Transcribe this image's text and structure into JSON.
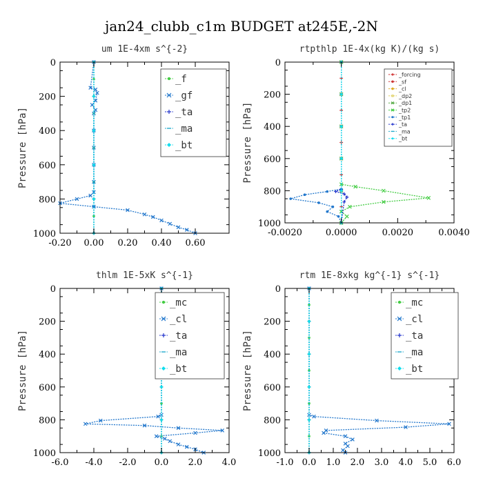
{
  "figure_title": "jan24_clubb_c1m  BUDGET at245E,-2N",
  "chart_data": [
    {
      "type": "line",
      "title": "um   1E-4xm s^{-2}",
      "ylabel": "Pressure [hPa]",
      "xlim": [
        -0.2,
        0.8
      ],
      "ylim": [
        1000,
        0
      ],
      "xticks": [
        -0.2,
        0.0,
        0.2,
        0.4,
        0.6
      ],
      "xtick_labels": [
        "-0.20",
        "0.00",
        "0.20",
        "0.40",
        "0.60"
      ],
      "yticks": [
        0,
        200,
        400,
        600,
        800,
        1000
      ],
      "legend_position": "top-right",
      "series": [
        {
          "name": "_f",
          "color": "#44cc44",
          "marker": "circle",
          "x": [
            0,
            0,
            0,
            0,
            0,
            0,
            0,
            0,
            0,
            0,
            0
          ],
          "y": [
            0,
            100,
            200,
            300,
            400,
            500,
            600,
            700,
            800,
            900,
            1000
          ]
        },
        {
          "name": "_gf",
          "color": "#2277cc",
          "marker": "x",
          "x": [
            0,
            -0.02,
            0.01,
            0.02,
            0.01,
            -0.01,
            0.01,
            0.0,
            0.0,
            0.0,
            0.0,
            0.0,
            0.0,
            -0.02,
            -0.1,
            -0.2,
            0.0,
            0.2,
            0.3,
            0.35,
            0.4,
            0.45,
            0.5,
            0.55,
            0.6
          ],
          "y": [
            0,
            150,
            160,
            180,
            225,
            250,
            280,
            300,
            400,
            500,
            600,
            700,
            760,
            780,
            800,
            825,
            845,
            865,
            890,
            905,
            925,
            945,
            965,
            980,
            1000
          ]
        },
        {
          "name": "_ta",
          "color": "#2233cc",
          "marker": "plus",
          "x": [
            0,
            0,
            0,
            0,
            0,
            0
          ],
          "y": [
            0,
            200,
            400,
            600,
            800,
            1000
          ]
        },
        {
          "name": "_ma",
          "color": "#22aacc",
          "marker": "dash",
          "x": [
            0,
            0,
            0,
            0,
            0,
            0
          ],
          "y": [
            0,
            200,
            400,
            600,
            800,
            1000
          ]
        },
        {
          "name": "_bt",
          "color": "#11ddee",
          "marker": "diamond",
          "x": [
            0,
            0,
            0,
            0,
            0,
            0
          ],
          "y": [
            0,
            200,
            400,
            600,
            800,
            1000
          ]
        }
      ]
    },
    {
      "type": "line",
      "title": "rtpthlp   1E-4x(kg K)/(kg s)",
      "ylabel": "Pressure [hPa]",
      "xlim": [
        -0.002,
        0.004
      ],
      "ylim": [
        1000,
        0
      ],
      "xticks": [
        -0.002,
        0.0,
        0.002,
        0.004
      ],
      "xtick_labels": [
        "-0.0020",
        "0.0000",
        "0.0020",
        "0.0040"
      ],
      "yticks": [
        0,
        200,
        400,
        600,
        800,
        1000
      ],
      "legend_position": "top-right",
      "series": [
        {
          "name": "_forcing",
          "color": "#cc2222",
          "marker": "plus",
          "x": [
            0,
            0,
            0,
            0,
            0,
            0,
            0,
            0,
            0,
            0,
            0
          ],
          "y": [
            0,
            100,
            200,
            300,
            400,
            500,
            600,
            700,
            800,
            900,
            1000
          ]
        },
        {
          "name": "_sf",
          "color": "#cc3333",
          "marker": "star",
          "x": [
            0,
            0,
            0,
            0,
            0,
            0
          ],
          "y": [
            0,
            200,
            400,
            600,
            800,
            1000
          ]
        },
        {
          "name": "_cl",
          "color": "#ddaa22",
          "marker": "star",
          "x": [
            0,
            0,
            0,
            0,
            0,
            0
          ],
          "y": [
            0,
            200,
            400,
            600,
            800,
            1000
          ]
        },
        {
          "name": "_dp2",
          "color": "#ddcc55",
          "marker": "square",
          "x": [
            0,
            0,
            0,
            0,
            0,
            0
          ],
          "y": [
            0,
            200,
            400,
            600,
            800,
            1000
          ]
        },
        {
          "name": "_dp1",
          "color": "#55aa44",
          "marker": "cross",
          "x": [
            0,
            0,
            0,
            0,
            0,
            0
          ],
          "y": [
            0,
            200,
            400,
            600,
            800,
            1000
          ]
        },
        {
          "name": "_tp2",
          "color": "#44cc44",
          "marker": "x",
          "x": [
            0,
            0,
            0.0005,
            0.0015,
            0.0031,
            0.0015,
            0.0003,
            0,
            0.0002,
            0
          ],
          "y": [
            0,
            760,
            775,
            800,
            845,
            870,
            900,
            930,
            960,
            1000
          ]
        },
        {
          "name": "_tp1",
          "color": "#2277cc",
          "marker": "circle",
          "x": [
            0,
            0,
            -0.0005,
            -0.0013,
            -0.0018,
            -0.0008,
            -0.0003,
            -0.0005,
            -0.0001,
            0
          ],
          "y": [
            0,
            790,
            805,
            825,
            850,
            875,
            900,
            930,
            960,
            1000
          ]
        },
        {
          "name": "_ta",
          "color": "#2233cc",
          "marker": "plus",
          "x": [
            0,
            0,
            -0.0002,
            0.0001,
            0.0002,
            0.0001,
            0
          ],
          "y": [
            0,
            790,
            805,
            820,
            840,
            870,
            1000
          ]
        },
        {
          "name": "_ma",
          "color": "#22aacc",
          "marker": "dash",
          "x": [
            0,
            0,
            0,
            0,
            0,
            0
          ],
          "y": [
            0,
            200,
            400,
            600,
            800,
            1000
          ]
        },
        {
          "name": "_bt",
          "color": "#11ddee",
          "marker": "diamond",
          "x": [
            0,
            0,
            0,
            0,
            0,
            0
          ],
          "y": [
            0,
            200,
            400,
            600,
            800,
            1000
          ]
        }
      ]
    },
    {
      "type": "line",
      "title": "thlm   1E-5xK s^{-1}",
      "ylabel": "Pressure [hPa]",
      "xlim": [
        -6.0,
        4.0
      ],
      "ylim": [
        1000,
        0
      ],
      "xticks": [
        -6.0,
        -4.0,
        -2.0,
        0.0,
        2.0,
        4.0
      ],
      "xtick_labels": [
        "-6.0",
        "-4.0",
        "-2.0",
        "0.0",
        "2.0",
        "4.0"
      ],
      "yticks": [
        0,
        200,
        400,
        600,
        800,
        1000
      ],
      "legend_position": "top-right",
      "series": [
        {
          "name": "_mc",
          "color": "#44cc44",
          "marker": "circle",
          "x": [
            0,
            0,
            0,
            0,
            0,
            0,
            0,
            0,
            0,
            0,
            0
          ],
          "y": [
            0,
            100,
            200,
            300,
            400,
            500,
            600,
            700,
            800,
            900,
            1000
          ]
        },
        {
          "name": "_cl",
          "color": "#2277cc",
          "marker": "x",
          "x": [
            0,
            0,
            -0.2,
            -3.6,
            -4.5,
            -1.0,
            1.0,
            3.6,
            2.0,
            -0.3,
            0.2,
            0.5,
            1.0,
            1.5,
            2.0,
            2.5
          ],
          "y": [
            0,
            770,
            780,
            805,
            825,
            835,
            850,
            865,
            880,
            900,
            915,
            930,
            950,
            965,
            980,
            1000
          ]
        },
        {
          "name": "_ta",
          "color": "#2233cc",
          "marker": "plus",
          "x": [
            0,
            0,
            0,
            0,
            0,
            0
          ],
          "y": [
            0,
            200,
            400,
            600,
            800,
            1000
          ]
        },
        {
          "name": "_ma",
          "color": "#22aacc",
          "marker": "dash",
          "x": [
            0,
            0,
            0,
            0,
            0,
            0
          ],
          "y": [
            0,
            200,
            400,
            600,
            800,
            1000
          ]
        },
        {
          "name": "_bt",
          "color": "#11ddee",
          "marker": "diamond",
          "x": [
            0,
            0,
            0,
            0,
            0,
            0
          ],
          "y": [
            0,
            200,
            400,
            600,
            800,
            1000
          ]
        }
      ]
    },
    {
      "type": "line",
      "title": "rtm   1E-8xkg kg^{-1} s^{-1}",
      "ylabel": "Pressure [hPa]",
      "xlim": [
        -1.0,
        6.0
      ],
      "ylim": [
        1000,
        0
      ],
      "xticks": [
        -1.0,
        0.0,
        1.0,
        2.0,
        3.0,
        4.0,
        5.0,
        6.0
      ],
      "xtick_labels": [
        "-1.0",
        "0.0",
        "1.0",
        "2.0",
        "3.0",
        "4.0",
        "5.0",
        "6.0"
      ],
      "yticks": [
        0,
        200,
        400,
        600,
        800,
        1000
      ],
      "legend_position": "top-right",
      "series": [
        {
          "name": "_mc",
          "color": "#44cc44",
          "marker": "circle",
          "x": [
            0,
            0,
            0,
            0,
            0,
            0,
            0,
            0,
            0,
            0,
            0
          ],
          "y": [
            0,
            100,
            200,
            300,
            400,
            500,
            600,
            700,
            800,
            900,
            1000
          ]
        },
        {
          "name": "_cl",
          "color": "#2277cc",
          "marker": "x",
          "x": [
            0,
            0,
            0.2,
            2.8,
            5.8,
            4.0,
            0.7,
            0.6,
            1.5,
            1.8,
            1.5,
            1.6,
            1.4,
            1.5
          ],
          "y": [
            0,
            770,
            780,
            805,
            825,
            845,
            865,
            880,
            900,
            920,
            945,
            960,
            985,
            1000
          ]
        },
        {
          "name": "_ta",
          "color": "#2233cc",
          "marker": "plus",
          "x": [
            0,
            0,
            0,
            0,
            0,
            0
          ],
          "y": [
            0,
            200,
            400,
            600,
            800,
            1000
          ]
        },
        {
          "name": "_ma",
          "color": "#22aacc",
          "marker": "dash",
          "x": [
            0,
            0,
            0,
            0,
            0,
            0
          ],
          "y": [
            0,
            200,
            400,
            600,
            800,
            1000
          ]
        },
        {
          "name": "_bt",
          "color": "#11ddee",
          "marker": "diamond",
          "x": [
            0,
            0,
            0,
            0,
            0,
            0
          ],
          "y": [
            0,
            200,
            400,
            600,
            800,
            1000
          ]
        }
      ]
    }
  ]
}
